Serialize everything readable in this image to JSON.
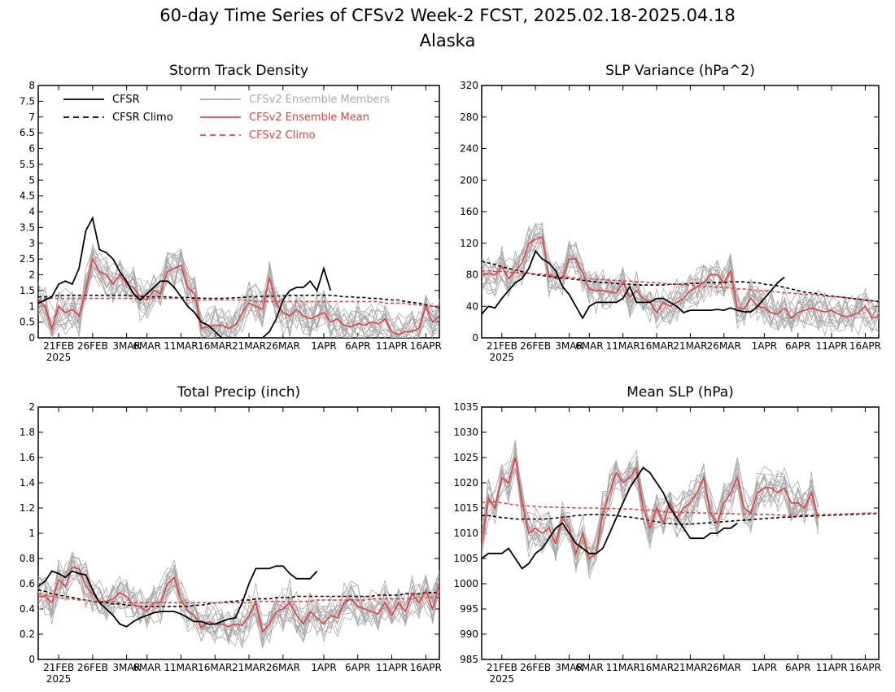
{
  "figure": {
    "title_line1": "60-day Time Series of CFSv2 Week-2 FCST, 2025.02.18-2025.04.18",
    "title_line2": "Alaska"
  },
  "legend": [
    {
      "label": "CFSR",
      "color": "#000000",
      "dash": false
    },
    {
      "label": "CFSR Climo",
      "color": "#000000",
      "dash": true
    },
    {
      "label": "CFSv2 Ensemble Members",
      "color": "#a9a9a9",
      "dash": false
    },
    {
      "label": "CFSv2 Ensemble Mean",
      "color": "#e8403f",
      "dash": false
    },
    {
      "label": "CFSv2 Climo",
      "color": "#e8403f",
      "dash": true
    }
  ],
  "x_ticks": [
    {
      "label": "21FEB",
      "day": 3
    },
    {
      "label": "26FEB",
      "day": 8
    },
    {
      "label": "3MAR",
      "day": 13
    },
    {
      "label": "6MAR",
      "day": 16
    },
    {
      "label": "11MAR",
      "day": 21
    },
    {
      "label": "16MAR",
      "day": 26
    },
    {
      "label": "21MAR",
      "day": 31
    },
    {
      "label": "26MAR",
      "day": 36
    },
    {
      "label": "1APR",
      "day": 42
    },
    {
      "label": "6APR",
      "day": 47
    },
    {
      "label": "11APR",
      "day": 52
    },
    {
      "label": "16APR",
      "day": 57
    }
  ],
  "x_year_label": "2025",
  "chart_data": [
    {
      "type": "line",
      "title": "Storm Track Density",
      "ylim": [
        0,
        8
      ],
      "yticks": [
        "0",
        "0.5",
        "1",
        "1.5",
        "2",
        "2.5",
        "3",
        "3.5",
        "4",
        "4.5",
        "5",
        "5.5",
        "6",
        "6.5",
        "7",
        "7.5",
        "8"
      ],
      "x_start": "2025-02-18",
      "series": [
        {
          "name": "CFSR",
          "values": [
            1.1,
            1.2,
            1.3,
            1.7,
            1.8,
            1.7,
            2.2,
            3.4,
            3.8,
            2.8,
            2.7,
            2.5,
            2.1,
            1.8,
            1.4,
            1.2,
            1.4,
            1.6,
            1.8,
            1.8,
            1.6,
            1.3,
            1.0,
            0.8,
            0.5,
            0.4,
            0.2,
            0.0,
            0.0,
            0.0,
            0.0,
            0.0,
            0.0,
            0.0,
            0.2,
            0.6,
            1.2,
            1.5,
            1.6,
            1.6,
            1.8,
            1.5,
            2.2,
            1.5
          ]
        },
        {
          "name": "CFSR Climo",
          "values": [
            1.3,
            1.3,
            1.3,
            1.35,
            1.35,
            1.35,
            1.35,
            1.35,
            1.35,
            1.35,
            1.35,
            1.35,
            1.35,
            1.35,
            1.32,
            1.32,
            1.3,
            1.3,
            1.3,
            1.3,
            1.28,
            1.28,
            1.28,
            1.26,
            1.26,
            1.25,
            1.25,
            1.25,
            1.26,
            1.27,
            1.28,
            1.3,
            1.3,
            1.32,
            1.32,
            1.33,
            1.33,
            1.35,
            1.35,
            1.35,
            1.35,
            1.35,
            1.35,
            1.35,
            1.33,
            1.3,
            1.3,
            1.28,
            1.28,
            1.25,
            1.25,
            1.22,
            1.2,
            1.2,
            1.15,
            1.12,
            1.1,
            1.05,
            1.0,
            0.95
          ]
        },
        {
          "name": "CFSv2 Ensemble Mean",
          "values": [
            1.2,
            1.0,
            0.3,
            1.0,
            0.8,
            0.9,
            0.7,
            1.5,
            2.5,
            2.1,
            2.0,
            1.7,
            2.0,
            1.7,
            1.6,
            1.3,
            1.2,
            1.5,
            1.4,
            2.1,
            2.2,
            2.3,
            1.6,
            1.4,
            0.3,
            0.35,
            0.4,
            0.4,
            0.3,
            0.4,
            0.8,
            1.1,
            1.0,
            0.9,
            1.9,
            1.1,
            0.8,
            0.7,
            0.9,
            0.7,
            0.6,
            0.7,
            0.8,
            0.5,
            0.6,
            0.4,
            0.35,
            0.45,
            0.4,
            0.5,
            0.45,
            0.6,
            0.2,
            0.1,
            0.2,
            0.2,
            0.3,
            1.0,
            0.5,
            0.7
          ]
        },
        {
          "name": "CFSv2 Climo",
          "values": [
            1.2,
            1.25,
            1.25,
            1.25,
            1.25,
            1.25,
            1.25,
            1.25,
            1.25,
            1.25,
            1.25,
            1.25,
            1.25,
            1.25,
            1.25,
            1.25,
            1.25,
            1.25,
            1.25,
            1.25,
            1.25,
            1.25,
            1.2,
            1.2,
            1.2,
            1.2,
            1.2,
            1.2,
            1.2,
            1.2,
            1.2,
            1.2,
            1.15,
            1.15,
            1.15,
            1.15,
            1.15,
            1.15,
            1.15,
            1.15,
            1.15,
            1.15,
            1.15,
            1.15,
            1.15,
            1.15,
            1.15,
            1.15,
            1.15,
            1.15,
            1.15,
            1.1,
            1.1,
            1.1,
            1.1,
            1.05,
            1.05,
            1.0,
            1.0,
            0.95
          ]
        }
      ]
    },
    {
      "type": "line",
      "title": "SLP Variance (hPa^2)",
      "ylim": [
        0,
        320
      ],
      "yticks": [
        "0",
        "40",
        "80",
        "120",
        "160",
        "200",
        "240",
        "280",
        "320"
      ],
      "x_start": "2025-02-18",
      "series": [
        {
          "name": "CFSR",
          "values": [
            30,
            40,
            38,
            50,
            60,
            70,
            75,
            88,
            110,
            100,
            95,
            85,
            65,
            55,
            40,
            25,
            40,
            45,
            45,
            45,
            45,
            50,
            65,
            45,
            45,
            45,
            50,
            50,
            45,
            40,
            32,
            35,
            35,
            35,
            35,
            36,
            35,
            38,
            35,
            33,
            33,
            40,
            50,
            60,
            70,
            77
          ]
        },
        {
          "name": "CFSR Climo",
          "values": [
            97,
            95,
            93,
            90,
            88,
            86,
            84,
            82,
            80,
            79,
            78,
            77,
            76,
            75,
            74,
            73,
            72,
            71,
            70,
            70,
            69,
            68,
            68,
            67,
            67,
            67,
            67,
            67,
            68,
            68,
            68,
            69,
            69,
            70,
            70,
            70,
            70,
            71,
            71,
            71,
            70,
            70,
            68,
            67,
            66,
            64,
            62,
            60,
            58,
            57,
            56,
            54,
            53,
            52,
            51,
            50,
            49,
            48,
            47,
            46
          ]
        },
        {
          "name": "CFSv2 Ensemble Mean",
          "values": [
            80,
            82,
            80,
            90,
            75,
            85,
            95,
            120,
            125,
            128,
            80,
            75,
            75,
            100,
            100,
            82,
            62,
            60,
            60,
            58,
            57,
            70,
            52,
            60,
            50,
            45,
            32,
            45,
            40,
            45,
            50,
            60,
            65,
            70,
            80,
            80,
            70,
            85,
            38,
            37,
            50,
            40,
            38,
            32,
            30,
            38,
            25,
            32,
            35,
            38,
            35,
            33,
            35,
            30,
            27,
            28,
            32,
            40,
            25,
            27
          ]
        },
        {
          "name": "CFSv2 Climo",
          "values": [
            85,
            85,
            84,
            84,
            83,
            83,
            82,
            82,
            81,
            81,
            80,
            79,
            78,
            77,
            76,
            75,
            75,
            74,
            74,
            73,
            73,
            72,
            72,
            71,
            71,
            70,
            70,
            69,
            68,
            68,
            67,
            67,
            66,
            65,
            65,
            64,
            64,
            63,
            62,
            62,
            61,
            60,
            60,
            59,
            58,
            57,
            57,
            56,
            55,
            55,
            54,
            53,
            52,
            52,
            51,
            50,
            49,
            48,
            47,
            46
          ]
        }
      ]
    },
    {
      "type": "line",
      "title": "Total Precip (inch)",
      "ylim": [
        0,
        2
      ],
      "yticks": [
        "0",
        "0.2",
        "0.4",
        "0.6",
        "0.8",
        "1",
        "1.2",
        "1.4",
        "1.6",
        "1.8",
        "2"
      ],
      "x_start": "2025-02-18",
      "series": [
        {
          "name": "CFSR",
          "values": [
            0.58,
            0.62,
            0.7,
            0.68,
            0.65,
            0.7,
            0.68,
            0.67,
            0.55,
            0.45,
            0.4,
            0.35,
            0.28,
            0.26,
            0.3,
            0.33,
            0.35,
            0.37,
            0.38,
            0.38,
            0.38,
            0.36,
            0.33,
            0.3,
            0.3,
            0.28,
            0.28,
            0.3,
            0.32,
            0.33,
            0.45,
            0.6,
            0.72,
            0.72,
            0.72,
            0.74,
            0.74,
            0.68,
            0.64,
            0.64,
            0.64,
            0.7
          ]
        },
        {
          "name": "CFSR Climo",
          "values": [
            0.55,
            0.54,
            0.52,
            0.51,
            0.5,
            0.49,
            0.48,
            0.47,
            0.46,
            0.45,
            0.45,
            0.44,
            0.44,
            0.43,
            0.43,
            0.42,
            0.42,
            0.42,
            0.42,
            0.42,
            0.42,
            0.42,
            0.42,
            0.43,
            0.43,
            0.44,
            0.45,
            0.45,
            0.46,
            0.46,
            0.47,
            0.47,
            0.48,
            0.48,
            0.48,
            0.49,
            0.49,
            0.49,
            0.5,
            0.5,
            0.5,
            0.5,
            0.5,
            0.5,
            0.5,
            0.5,
            0.5,
            0.5,
            0.5,
            0.5,
            0.51,
            0.51,
            0.51,
            0.51,
            0.52,
            0.52,
            0.52,
            0.53,
            0.53,
            0.53
          ]
        },
        {
          "name": "CFSv2 Ensemble Mean",
          "values": [
            0.5,
            0.5,
            0.45,
            0.63,
            0.58,
            0.73,
            0.72,
            0.58,
            0.52,
            0.46,
            0.46,
            0.48,
            0.53,
            0.5,
            0.43,
            0.42,
            0.38,
            0.45,
            0.45,
            0.6,
            0.65,
            0.47,
            0.38,
            0.35,
            0.25,
            0.3,
            0.28,
            0.28,
            0.26,
            0.28,
            0.27,
            0.35,
            0.45,
            0.22,
            0.28,
            0.38,
            0.4,
            0.45,
            0.35,
            0.28,
            0.38,
            0.33,
            0.28,
            0.35,
            0.33,
            0.45,
            0.48,
            0.42,
            0.4,
            0.38,
            0.36,
            0.45,
            0.35,
            0.45,
            0.38,
            0.52,
            0.45,
            0.55,
            0.4,
            0.6
          ]
        },
        {
          "name": "CFSv2 Climo",
          "values": [
            0.52,
            0.51,
            0.5,
            0.49,
            0.48,
            0.48,
            0.47,
            0.47,
            0.46,
            0.46,
            0.46,
            0.46,
            0.45,
            0.45,
            0.45,
            0.45,
            0.45,
            0.45,
            0.45,
            0.45,
            0.45,
            0.45,
            0.45,
            0.45,
            0.45,
            0.45,
            0.45,
            0.45,
            0.45,
            0.45,
            0.45,
            0.45,
            0.46,
            0.46,
            0.46,
            0.46,
            0.46,
            0.46,
            0.46,
            0.46,
            0.46,
            0.47,
            0.47,
            0.47,
            0.47,
            0.47,
            0.47,
            0.47,
            0.47,
            0.48,
            0.48,
            0.48,
            0.48,
            0.48,
            0.48,
            0.48,
            0.49,
            0.49,
            0.49,
            0.49
          ]
        }
      ]
    },
    {
      "type": "line",
      "title": "Mean SLP (hPa)",
      "ylim": [
        985,
        1035
      ],
      "yticks": [
        "985",
        "990",
        "995",
        "1000",
        "1005",
        "1010",
        "1015",
        "1020",
        "1025",
        "1030",
        "1035"
      ],
      "x_start": "2025-02-18",
      "series": [
        {
          "name": "CFSR",
          "values": [
            1005,
            1006,
            1006,
            1006,
            1007,
            1005,
            1003,
            1004,
            1006,
            1007,
            1009,
            1011,
            1012,
            1010,
            1008,
            1007,
            1006,
            1006,
            1007,
            1010,
            1013,
            1016,
            1019,
            1021,
            1023,
            1022,
            1020,
            1018,
            1015,
            1013,
            1011,
            1009,
            1009,
            1009,
            1010,
            1010,
            1011,
            1011,
            1012
          ]
        },
        {
          "name": "CFSR Climo",
          "values": [
            1013.5,
            1013.5,
            1013.3,
            1013.1,
            1013.0,
            1012.8,
            1012.8,
            1012.8,
            1012.8,
            1012.8,
            1012.9,
            1013.0,
            1013.2,
            1013.3,
            1013.5,
            1013.6,
            1013.7,
            1013.7,
            1013.7,
            1013.6,
            1013.5,
            1013.3,
            1013.2,
            1013.0,
            1012.8,
            1012.5,
            1012.3,
            1012.0,
            1011.9,
            1011.8,
            1011.8,
            1011.8,
            1011.9,
            1012.0,
            1012.1,
            1012.2,
            1012.3,
            1012.4,
            1012.5,
            1012.6,
            1012.7,
            1012.8,
            1012.9,
            1013.0,
            1013.1,
            1013.2,
            1013.2,
            1013.3,
            1013.4,
            1013.4,
            1013.5,
            1013.5,
            1013.6,
            1013.6,
            1013.7,
            1013.7,
            1013.8,
            1013.8,
            1013.9,
            1013.9
          ]
        },
        {
          "name": "CFSv2 Ensemble Mean",
          "values": [
            1008,
            1017,
            1015,
            1021,
            1020,
            1025,
            1016,
            1010,
            1011,
            1010,
            1011,
            1008,
            1013,
            1011,
            1006,
            1010,
            1005,
            1006,
            1014,
            1018,
            1022,
            1020,
            1021,
            1023,
            1015,
            1011,
            1015,
            1012,
            1016,
            1013,
            1015,
            1016,
            1018,
            1021,
            1014,
            1012,
            1016,
            1018,
            1021,
            1015,
            1014,
            1018,
            1019,
            1019,
            1018,
            1019,
            1016,
            1016,
            1015,
            1018,
            1013
          ]
        },
        {
          "name": "CFSv2 Climo",
          "values": [
            1016,
            1016.3,
            1016.2,
            1016.0,
            1015.8,
            1015.6,
            1015.5,
            1015.4,
            1015.3,
            1015.2,
            1015.2,
            1015.2,
            1015.1,
            1015.1,
            1015.0,
            1015.0,
            1015.0,
            1015.0,
            1014.9,
            1014.9,
            1014.9,
            1014.8,
            1014.8,
            1014.7,
            1014.6,
            1014.5,
            1014.4,
            1014.3,
            1014.2,
            1014.2,
            1014.1,
            1014.1,
            1014.0,
            1014.0,
            1014.0,
            1013.9,
            1013.9,
            1013.9,
            1013.8,
            1013.8,
            1013.8,
            1013.7,
            1013.7,
            1013.7,
            1013.6,
            1013.6,
            1013.6,
            1013.6,
            1013.6,
            1013.6,
            1013.7,
            1013.7,
            1013.7,
            1013.8,
            1013.8,
            1013.9,
            1013.9,
            1014.0,
            1014.0,
            1014.0
          ]
        }
      ],
      "ensemble_members_count": 16
    }
  ]
}
